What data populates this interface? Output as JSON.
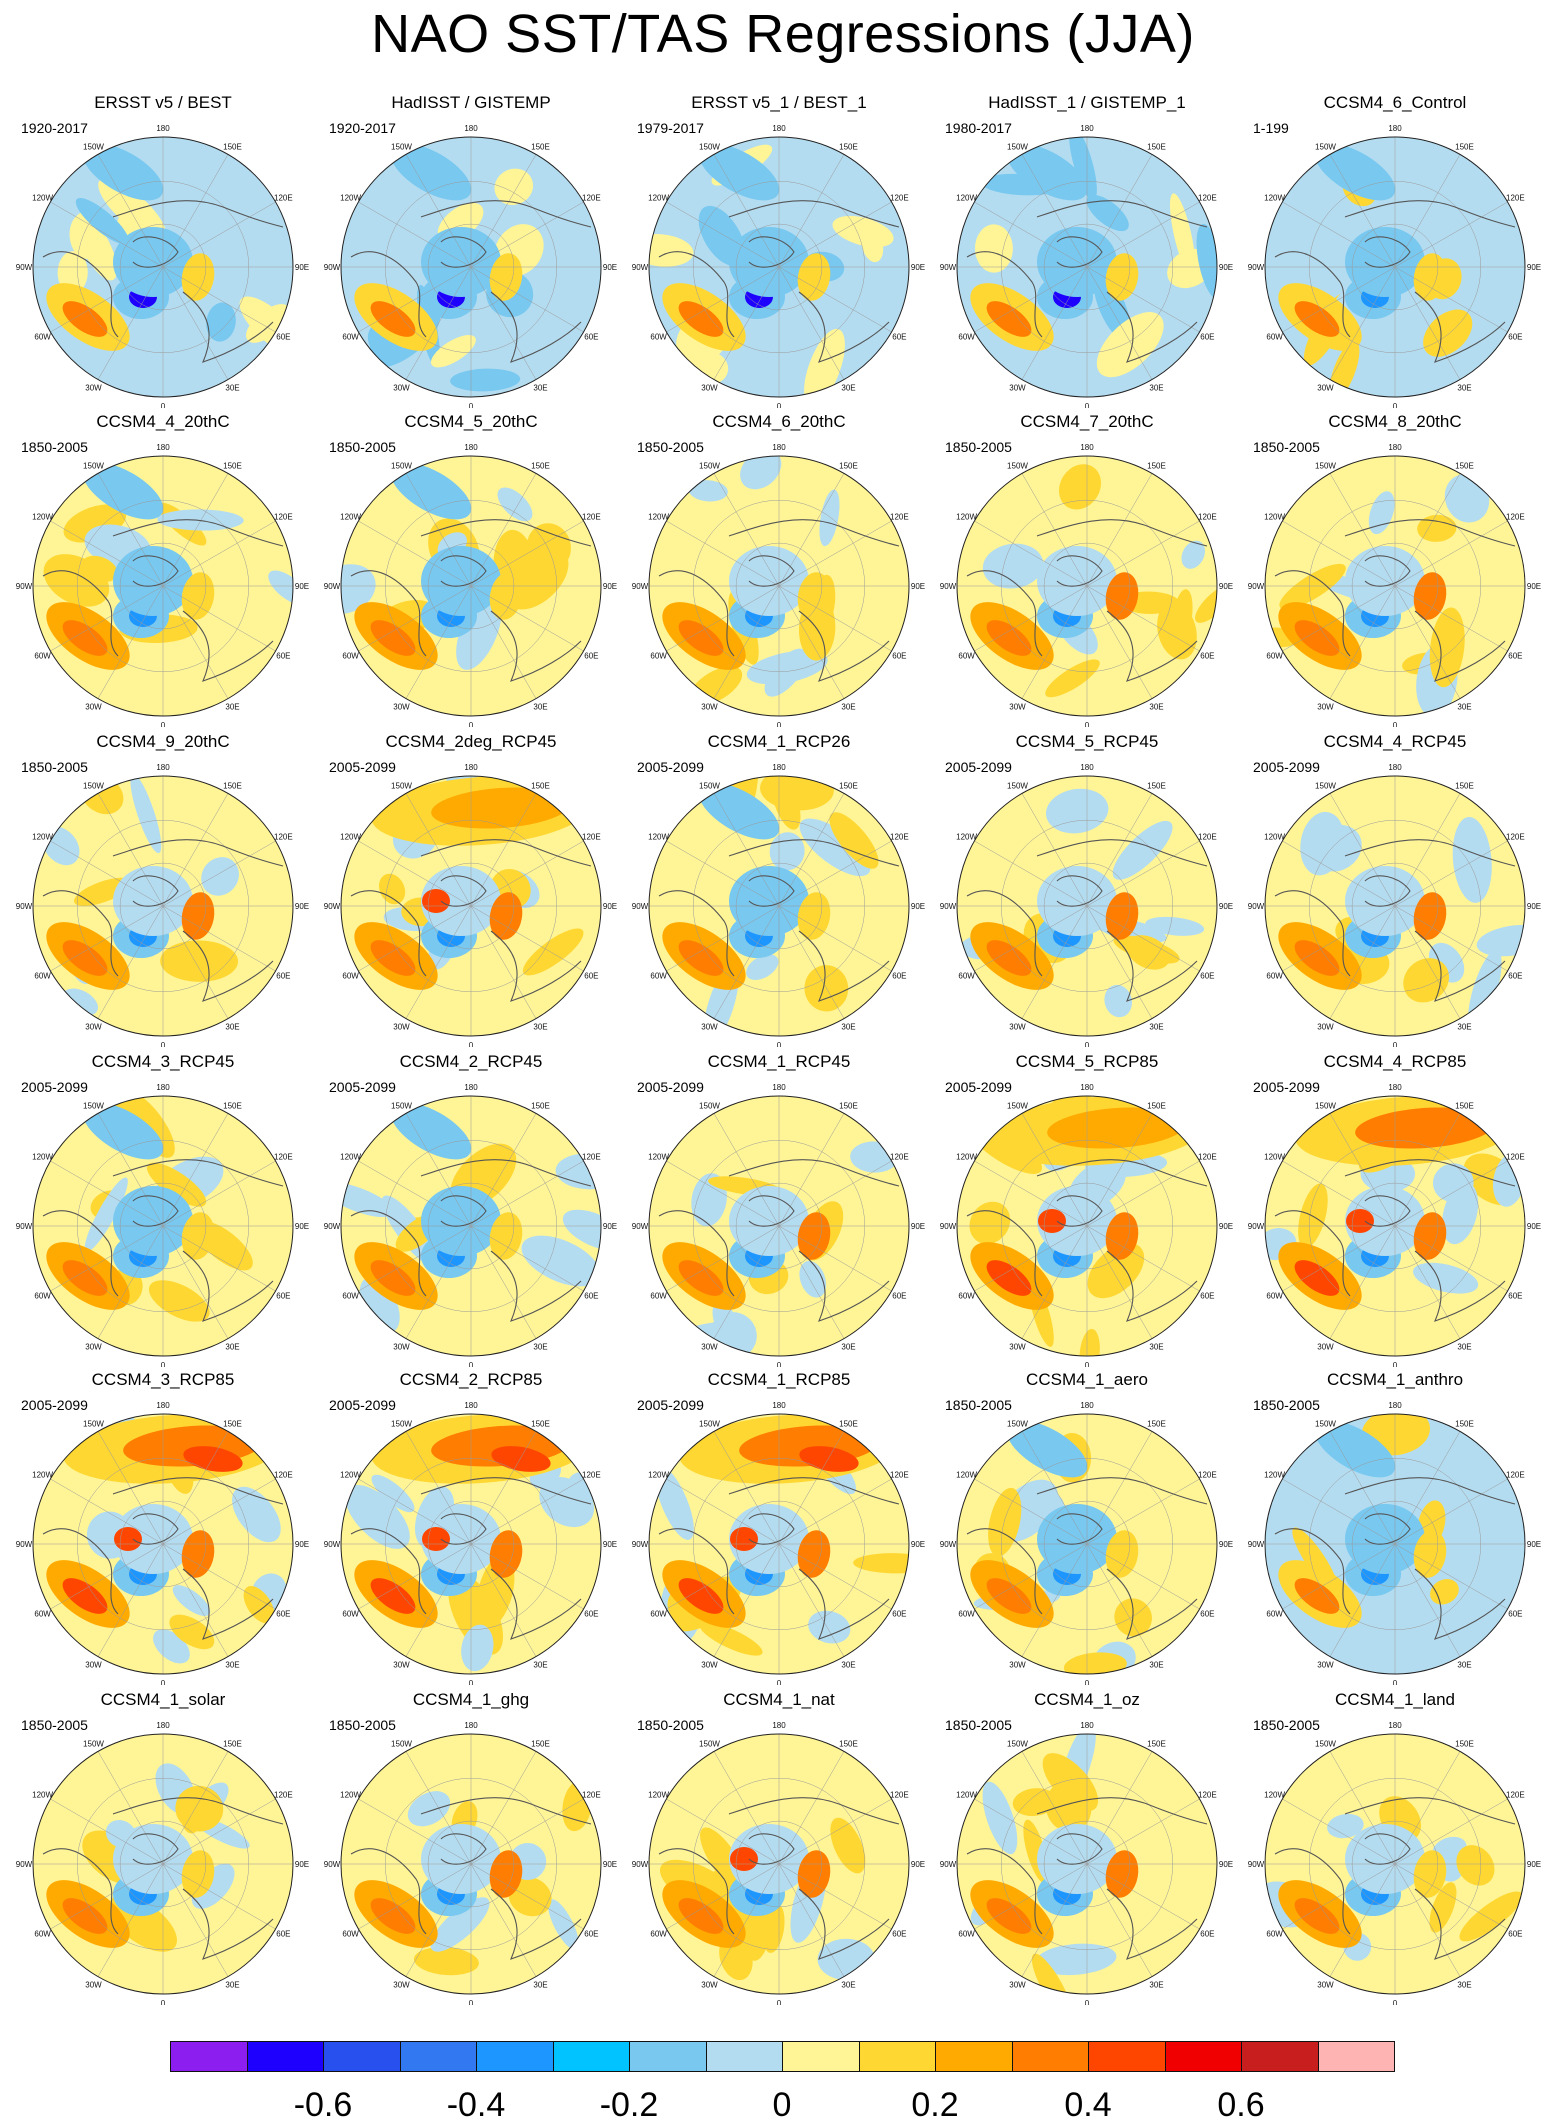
{
  "title": "NAO SST/TAS Regressions (JJA)",
  "lon_labels": {
    "top": "180",
    "upper_left": "150W",
    "upper_right": "150E",
    "left_upper": "120W",
    "right_upper": "120E",
    "left_mid": "90W",
    "right_mid": "90E",
    "left_lower": "60W",
    "right_lower": "60E",
    "lower_left": "30W",
    "lower_right": "30E",
    "bottom": "0"
  },
  "panels": [
    {
      "title": "ERSST v5 / BEST",
      "period": "1920-2017"
    },
    {
      "title": "HadISST / GISTEMP",
      "period": "1920-2017"
    },
    {
      "title": "ERSST v5_1 / BEST_1",
      "period": "1979-2017"
    },
    {
      "title": "HadISST_1 / GISTEMP_1",
      "period": "1980-2017"
    },
    {
      "title": "CCSM4_6_Control",
      "period": "1-199"
    },
    {
      "title": "CCSM4_4_20thC",
      "period": "1850-2005"
    },
    {
      "title": "CCSM4_5_20thC",
      "period": "1850-2005"
    },
    {
      "title": "CCSM4_6_20thC",
      "period": "1850-2005"
    },
    {
      "title": "CCSM4_7_20thC",
      "period": "1850-2005"
    },
    {
      "title": "CCSM4_8_20thC",
      "period": "1850-2005"
    },
    {
      "title": "CCSM4_9_20thC",
      "period": "1850-2005"
    },
    {
      "title": "CCSM4_2deg_RCP45",
      "period": "2005-2099"
    },
    {
      "title": "CCSM4_1_RCP26",
      "period": "2005-2099"
    },
    {
      "title": "CCSM4_5_RCP45",
      "period": "2005-2099"
    },
    {
      "title": "CCSM4_4_RCP45",
      "period": "2005-2099"
    },
    {
      "title": "CCSM4_3_RCP45",
      "period": "2005-2099"
    },
    {
      "title": "CCSM4_2_RCP45",
      "period": "2005-2099"
    },
    {
      "title": "CCSM4_1_RCP45",
      "period": "2005-2099"
    },
    {
      "title": "CCSM4_5_RCP85",
      "period": "2005-2099"
    },
    {
      "title": "CCSM4_4_RCP85",
      "period": "2005-2099"
    },
    {
      "title": "CCSM4_3_RCP85",
      "period": "2005-2099"
    },
    {
      "title": "CCSM4_2_RCP85",
      "period": "2005-2099"
    },
    {
      "title": "CCSM4_1_RCP85",
      "period": "2005-2099"
    },
    {
      "title": "CCSM4_1_aero",
      "period": "1850-2005"
    },
    {
      "title": "CCSM4_1_anthro",
      "period": "1850-2005"
    },
    {
      "title": "CCSM4_1_solar",
      "period": "1850-2005"
    },
    {
      "title": "CCSM4_1_ghg",
      "period": "1850-2005"
    },
    {
      "title": "CCSM4_1_nat",
      "period": "1850-2005"
    },
    {
      "title": "CCSM4_1_oz",
      "period": "1850-2005"
    },
    {
      "title": "CCSM4_1_land",
      "period": "1850-2005"
    }
  ],
  "colorbar": {
    "colors": [
      "#8c1ef0",
      "#1e00ff",
      "#2850ee",
      "#3278f0",
      "#1e96ff",
      "#00c3ff",
      "#78c8f0",
      "#b4dcf0",
      "#fff596",
      "#ffd732",
      "#ffaa00",
      "#ff7d00",
      "#ff4600",
      "#f00000",
      "#c81e1e",
      "#ffb4b4"
    ],
    "labels": [
      "-0.6",
      "-0.4",
      "-0.2",
      "0",
      "0.2",
      "0.4",
      "0.6"
    ]
  }
}
